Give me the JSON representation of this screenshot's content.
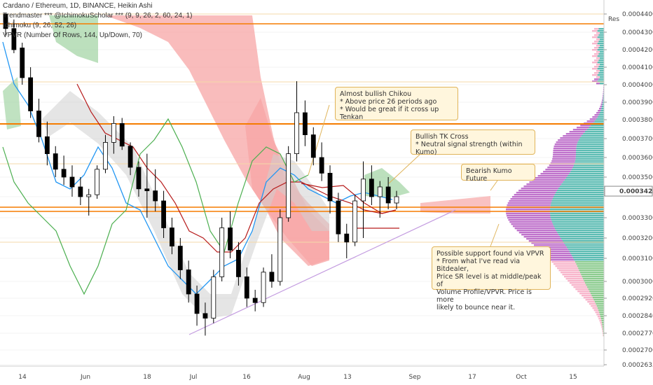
{
  "legend": {
    "title": "Cardano / Ethereum, 1D, BINANCE, Heikin Ashi",
    "line2": "Trendmaster *** @IchimokuScholar *** (9, 9, 26, 2, 60, 24, 1)",
    "line3": "Ichimoku (9, 26, 52, 26)",
    "line4": "VPVR (Number Of Rows, 144, Up/Down, 70)"
  },
  "annotations": {
    "chikou": "Almost bullish Chikou\n* Above price 26 periods ago\n* Would be great if it cross up Tenkan",
    "tkcross": "Bullish TK Cross\n* Neutral signal strength (within Kumo)",
    "kumo": "Bearish Kumo Future",
    "support": "Possible support found via VPVR\n* From what I've read via Bitdealer,\nPrice SR level is at middle/peak of\nVolume Profile/VPVR. Price is more\nlikely to bounce near it."
  },
  "res_label": "Res",
  "colors": {
    "bull": "#4caf50",
    "bear": "#000000",
    "tenkan": "#2196f3",
    "kijun": "#b71c1c",
    "chikou": "#4caf50",
    "kumo_bear": "#f7a6a6",
    "kumo_bull": "#a5d6a7",
    "orange": "#f57c00",
    "trend": "#c39be0",
    "vpvr_up": "#26a69a",
    "vpvr_down": "#9c27b0"
  },
  "chart_data": {
    "type": "candlestick",
    "y_axis": {
      "ticks": [
        "0.00044000",
        "0.00043000",
        "0.00042000",
        "0.00041000",
        "0.00040000",
        "0.00039000",
        "0.00038000",
        "0.00037000",
        "0.00036000",
        "0.00035000",
        "0.00034283",
        "0.00033000",
        "0.00032000",
        "0.00031000",
        "0.00030000",
        "0.00029200",
        "0.00028400",
        "0.00027700",
        "0.00027000",
        "0.00026350"
      ],
      "current_price": "0.00034283"
    },
    "x_axis": {
      "ticks": [
        "14",
        "Jun",
        "11",
        "18",
        "Jul",
        "16",
        "Aug",
        "13",
        "Sep",
        "17",
        "Oct",
        "15"
      ]
    },
    "horizontal_levels": [
      "0.00043500",
      "0.00037800",
      "0.00033600",
      "0.00033400"
    ],
    "candles": [
      [
        0.00044,
        0.00044,
        0.000428,
        0.000432
      ],
      [
        0.000432,
        0.000437,
        0.000418,
        0.00042
      ],
      [
        0.000421,
        0.000424,
        0.0004,
        0.000404
      ],
      [
        0.000404,
        0.00041,
        0.000381,
        0.000385
      ],
      [
        0.000385,
        0.000392,
        0.000368,
        0.000371
      ],
      [
        0.000371,
        0.000379,
        0.000356,
        0.000362
      ],
      [
        0.000362,
        0.000366,
        0.00035,
        0.000354
      ],
      [
        0.000354,
        0.000361,
        0.000346,
        0.00035
      ],
      [
        0.00035,
        0.000356,
        0.00034,
        0.000345
      ],
      [
        0.000345,
        0.00035,
        0.000336,
        0.00034
      ],
      [
        0.00034,
        0.000344,
        0.000331,
        0.000341
      ],
      [
        0.000341,
        0.000356,
        0.000339,
        0.000354
      ],
      [
        0.000354,
        0.000372,
        0.000352,
        0.000368
      ],
      [
        0.000368,
        0.000382,
        0.000362,
        0.000378
      ],
      [
        0.000378,
        0.000381,
        0.000364,
        0.000366
      ],
      [
        0.000366,
        0.000368,
        0.000351,
        0.000355
      ],
      [
        0.000355,
        0.000358,
        0.00034,
        0.000344
      ],
      [
        0.000344,
        0.000362,
        0.00033,
        0.000343
      ],
      [
        0.000343,
        0.000354,
        0.000333,
        0.000338
      ],
      [
        0.000338,
        0.000343,
        0.00032,
        0.000325
      ],
      [
        0.000325,
        0.00033,
        0.000312,
        0.000316
      ],
      [
        0.000316,
        0.00032,
        0.000301,
        0.000305
      ],
      [
        0.000305,
        0.000309,
        0.00029,
        0.000294
      ],
      [
        0.000294,
        0.000298,
        0.00028,
        0.000285
      ],
      [
        0.000285,
        0.00029,
        0.000276,
        0.000283
      ],
      [
        0.000283,
        0.000305,
        0.000281,
        0.000302
      ],
      [
        0.000302,
        0.00033,
        0.0003,
        0.000325
      ],
      [
        0.000325,
        0.000333,
        0.00031,
        0.000314
      ],
      [
        0.000314,
        0.000318,
        0.000298,
        0.000302
      ],
      [
        0.000302,
        0.000306,
        0.000288,
        0.000292
      ],
      [
        0.000292,
        0.000296,
        0.000286,
        0.00029
      ],
      [
        0.00029,
        0.000306,
        0.000288,
        0.000304
      ],
      [
        0.000304,
        0.000312,
        0.000297,
        0.0003
      ],
      [
        0.0003,
        0.000334,
        0.000298,
        0.00033
      ],
      [
        0.00033,
        0.000366,
        0.000328,
        0.000362
      ],
      [
        0.000362,
        0.000402,
        0.000358,
        0.000384
      ],
      [
        0.000384,
        0.000391,
        0.000366,
        0.000372
      ],
      [
        0.000372,
        0.000376,
        0.000356,
        0.00036
      ],
      [
        0.00036,
        0.000368,
        0.000348,
        0.000352
      ],
      [
        0.000352,
        0.000356,
        0.000332,
        0.000338
      ],
      [
        0.000338,
        0.000342,
        0.000318,
        0.000322
      ],
      [
        0.000322,
        0.000327,
        0.00031,
        0.000318
      ],
      [
        0.000318,
        0.000341,
        0.000316,
        0.000338
      ],
      [
        0.000338,
        0.000358,
        0.00032,
        0.000349
      ],
      [
        0.000349,
        0.000356,
        0.000336,
        0.00034
      ],
      [
        0.00034,
        0.000348,
        0.00033,
        0.000345
      ],
      [
        0.000345,
        0.00035,
        0.000334,
        0.000337
      ],
      [
        0.000337,
        0.000343,
        0.000334,
        0.00034
      ]
    ]
  }
}
